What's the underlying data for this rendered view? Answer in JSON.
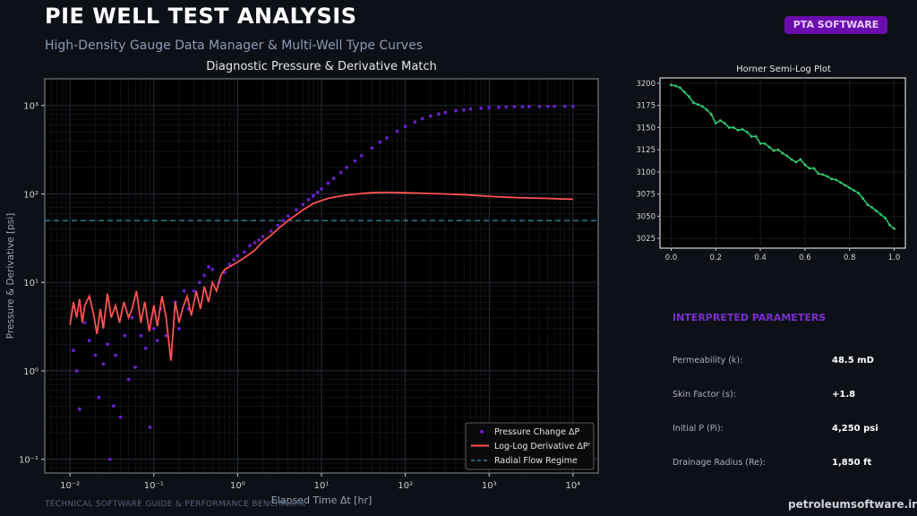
{
  "header": {
    "title": "PIE WELL TEST ANALYSIS",
    "subtitle": "High-Density Gauge Data Manager & Multi-Well Type Curves",
    "badge": "PTA SOFTWARE"
  },
  "chart_data": [
    {
      "type": "scatter",
      "title": "Diagnostic Pressure & Derivative Match",
      "xlabel": "Elapsed Time Δt [hr]",
      "ylabel": "Pressure & Derivative [psi]",
      "xscale": "log",
      "yscale": "log",
      "xlim": [
        0.005,
        20000
      ],
      "ylim": [
        0.07,
        2000
      ],
      "xticks": [
        "10⁻²",
        "10⁻¹",
        "10⁰",
        "10¹",
        "10²",
        "10³",
        "10⁴"
      ],
      "yticks": [
        "10⁻¹",
        "10⁰",
        "10¹",
        "10²",
        "10³"
      ],
      "grid": true,
      "legend": "bottom-right",
      "series": [
        {
          "name": "Pressure Change ΔP",
          "kind": "scatter",
          "color": "#6a1fc9",
          "x": [
            0.011,
            0.012,
            0.013,
            0.015,
            0.017,
            0.02,
            0.022,
            0.025,
            0.028,
            0.03,
            0.033,
            0.035,
            0.04,
            0.045,
            0.05,
            0.055,
            0.06,
            0.07,
            0.08,
            0.09,
            0.1,
            0.11,
            0.12,
            0.14,
            0.16,
            0.18,
            0.2,
            0.23,
            0.26,
            0.3,
            0.35,
            0.4,
            0.45,
            0.5,
            0.6,
            0.7,
            0.8,
            0.9,
            1.0,
            1.2,
            1.4,
            1.6,
            1.8,
            2.0,
            2.5,
            3,
            3.5,
            4,
            5,
            6,
            7,
            8,
            9,
            10,
            12,
            14,
            17,
            20,
            25,
            30,
            40,
            50,
            60,
            80,
            100,
            130,
            160,
            200,
            250,
            300,
            400,
            500,
            600,
            800,
            1000,
            1300,
            1600,
            2000,
            2500,
            3000,
            4000,
            5000,
            6000,
            8000,
            10000
          ],
          "y": [
            1.7,
            1.0,
            0.37,
            3.5,
            2.2,
            1.5,
            0.5,
            1.2,
            2.0,
            0.1,
            0.4,
            1.5,
            0.3,
            2.5,
            0.8,
            4,
            1.1,
            2.5,
            1.8,
            0.23,
            3,
            2.2,
            5,
            2.5,
            1.5,
            6,
            3,
            8,
            5,
            8,
            10,
            12,
            15,
            14,
            10,
            13,
            16,
            18,
            20,
            22,
            26,
            28,
            30,
            33,
            38,
            44,
            50,
            56,
            66,
            76,
            86,
            95,
            104,
            114,
            132,
            150,
            175,
            200,
            236,
            270,
            330,
            385,
            430,
            510,
            580,
            650,
            710,
            760,
            800,
            830,
            870,
            890,
            910,
            930,
            945,
            955,
            960,
            965,
            968,
            970,
            972,
            974,
            975,
            976,
            975
          ]
        },
        {
          "name": "Log-Log Derivative ΔP'",
          "kind": "line",
          "color": "#ff5252",
          "x": [
            0.01,
            0.011,
            0.012,
            0.013,
            0.014,
            0.015,
            0.017,
            0.019,
            0.021,
            0.023,
            0.025,
            0.028,
            0.031,
            0.035,
            0.039,
            0.044,
            0.05,
            0.055,
            0.062,
            0.07,
            0.078,
            0.088,
            0.1,
            0.11,
            0.125,
            0.14,
            0.16,
            0.18,
            0.2,
            0.22,
            0.25,
            0.28,
            0.32,
            0.36,
            0.4,
            0.45,
            0.5,
            0.56,
            0.63,
            0.7,
            0.8,
            0.9,
            1.0,
            1.2,
            1.4,
            1.6,
            1.8,
            2.0,
            2.5,
            3,
            3.5,
            4,
            5,
            6,
            7,
            8,
            10,
            12,
            15,
            20,
            25,
            30,
            40,
            50,
            70,
            100,
            150,
            200,
            300,
            500,
            700,
            1000,
            1500,
            2000,
            3000,
            5000,
            7000,
            10000
          ],
          "y": [
            3.3,
            6.0,
            4.0,
            6.5,
            3.5,
            5.5,
            7.0,
            4.5,
            2.6,
            5.0,
            3.0,
            7.5,
            4.0,
            5.5,
            3.5,
            6.0,
            4.0,
            5.0,
            8.0,
            3.5,
            6.0,
            2.8,
            5.5,
            3.2,
            7.0,
            4.0,
            1.3,
            6.0,
            3.5,
            5.0,
            7.0,
            4.2,
            8.0,
            5.0,
            9.0,
            6.0,
            10.0,
            8.0,
            12,
            14,
            15,
            16,
            17,
            19,
            21,
            23,
            26,
            29,
            34,
            40,
            45,
            50,
            58,
            66,
            72,
            78,
            84,
            89,
            93,
            97,
            99,
            101,
            103,
            104,
            104,
            103,
            102,
            101,
            100,
            98,
            96,
            94,
            92,
            91,
            90,
            89,
            88,
            87
          ]
        },
        {
          "name": "Radial Flow Regime",
          "kind": "hline",
          "color": "#2aa3b8",
          "y": 50
        }
      ]
    },
    {
      "type": "line",
      "title": "Horner Semi-Log Plot",
      "xlabel": "",
      "ylabel": "",
      "xlim": [
        -0.05,
        1.05
      ],
      "ylim": [
        3014,
        3206
      ],
      "xticks": [
        "0.0",
        "0.2",
        "0.4",
        "0.6",
        "0.8",
        "1.0"
      ],
      "yticks": [
        "3025",
        "3050",
        "3075",
        "3100",
        "3125",
        "3150",
        "3175",
        "3200"
      ],
      "grid": true,
      "series": [
        {
          "color": "#2ecc71",
          "x": [
            0.0,
            0.02,
            0.04,
            0.06,
            0.08,
            0.1,
            0.12,
            0.14,
            0.16,
            0.18,
            0.2,
            0.22,
            0.24,
            0.26,
            0.28,
            0.3,
            0.32,
            0.34,
            0.36,
            0.38,
            0.4,
            0.42,
            0.44,
            0.46,
            0.48,
            0.5,
            0.52,
            0.54,
            0.56,
            0.58,
            0.6,
            0.62,
            0.64,
            0.66,
            0.68,
            0.7,
            0.72,
            0.74,
            0.76,
            0.78,
            0.8,
            0.82,
            0.84,
            0.86,
            0.88,
            0.9,
            0.92,
            0.94,
            0.96,
            0.98,
            1.0
          ],
          "y": [
            3198,
            3197,
            3195,
            3190,
            3185,
            3178,
            3176,
            3174,
            3170,
            3165,
            3155,
            3158,
            3155,
            3150,
            3150,
            3147,
            3148,
            3145,
            3140,
            3140,
            3132,
            3132,
            3128,
            3124,
            3125,
            3121,
            3118,
            3114,
            3111,
            3114,
            3108,
            3104,
            3104,
            3098,
            3097,
            3095,
            3092,
            3091,
            3088,
            3085,
            3082,
            3079,
            3076,
            3070,
            3063,
            3060,
            3056,
            3052,
            3048,
            3040,
            3036
          ]
        }
      ]
    }
  ],
  "params": {
    "heading": "INTERPRETED PARAMETERS",
    "rows": [
      {
        "label": "Permeability (k):",
        "value": "48.5 mD"
      },
      {
        "label": "Skin Factor (s):",
        "value": "+1.8"
      },
      {
        "label": "Initial P (Pi):",
        "value": "4,250 psi"
      },
      {
        "label": "Drainage Radius (Re):",
        "value": "1,850 ft"
      }
    ]
  },
  "footer": {
    "left": "TECHNICAL SOFTWARE GUIDE & PERFORMANCE BENCHMARK",
    "right": "petroleumsoftware.ir"
  }
}
